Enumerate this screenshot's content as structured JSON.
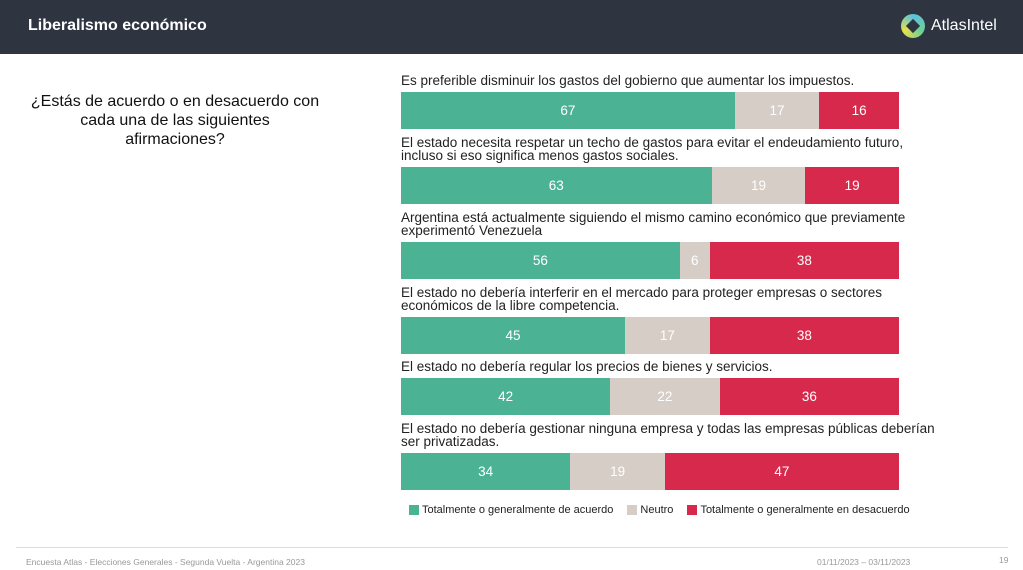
{
  "header": {
    "title": "Liberalismo económico",
    "logo_text": "AtlasIntel"
  },
  "question": "¿Estás de acuerdo o en desacuerdo con cada una de las siguientes afirmaciones?",
  "colors": {
    "agree": "#4bb394",
    "neutral": "#d5cdc6",
    "disagree": "#d6294b"
  },
  "chart_data": {
    "type": "bar",
    "orientation": "horizontal-stacked-100",
    "categories": [
      "Es preferible disminuir los gastos del gobierno que aumentar los impuestos.",
      "El estado necesita respetar un techo de gastos para evitar el endeudamiento futuro, incluso si eso significa menos gastos sociales.",
      "Argentina está actualmente siguiendo el mismo camino económico que previamente experimentó Venezuela",
      "El estado no debería interferir en el mercado para proteger empresas o sectores económicos de la libre competencia.",
      "El estado no debería regular los precios de bienes y servicios.",
      "El estado no debería gestionar ninguna empresa y todas las empresas públicas deberían ser privatizadas."
    ],
    "series": [
      {
        "name": "Totalmente o generalmente de acuerdo",
        "values": [
          67,
          63,
          56,
          45,
          42,
          34
        ]
      },
      {
        "name": "Neutro",
        "values": [
          17,
          19,
          6,
          17,
          22,
          19
        ]
      },
      {
        "name": "Totalmente o generalmente en desacuerdo",
        "values": [
          16,
          19,
          38,
          38,
          36,
          47
        ]
      }
    ],
    "legend": "bottom"
  },
  "footer": {
    "left": "Encuesta Atlas - Elecciones Generales - Segunda Vuelta - Argentina 2023",
    "dates": "01/11/2023 – 03/11/2023",
    "page": "19"
  }
}
